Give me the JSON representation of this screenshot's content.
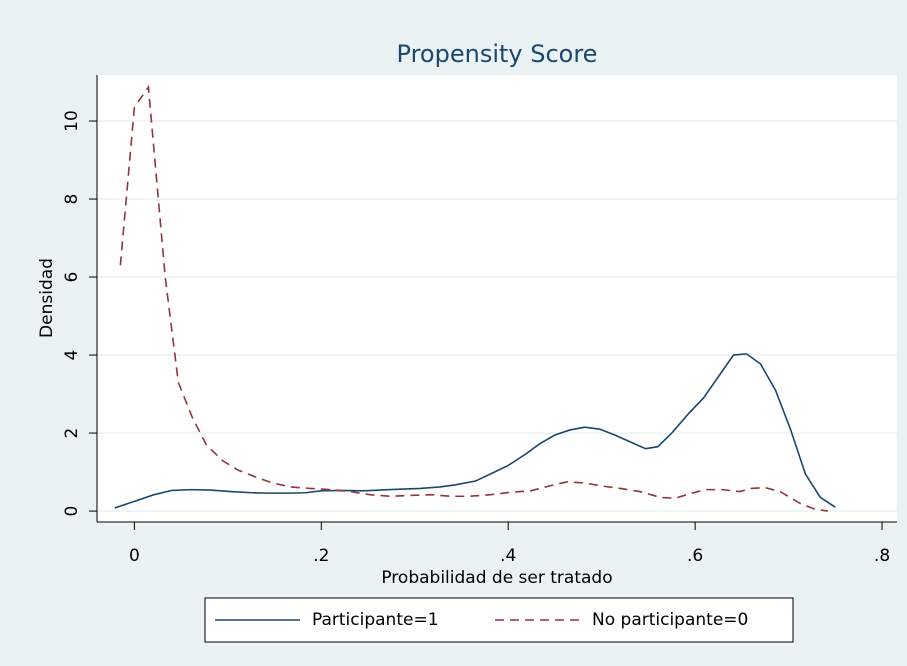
{
  "chart_data": {
    "type": "line",
    "title": "Propensity Score",
    "x_label": "Probabilidad de ser tratado",
    "y_label": "Densidad",
    "xlim": [
      -0.04,
      0.816
    ],
    "ylim": [
      -0.28,
      11.18
    ],
    "xticks": [
      0,
      {
        "value": 0.2,
        "label": ".2"
      },
      {
        "value": 0.4,
        "label": ".4"
      },
      {
        "value": 0.6,
        "label": ".6"
      },
      {
        "value": 0.8,
        "label": ".8"
      }
    ],
    "yticks": [
      0,
      2,
      4,
      6,
      8,
      10
    ],
    "grid": true,
    "legend": "bottom",
    "series": [
      {
        "name": "Participante=1",
        "color": "#1a476f",
        "dash": "solid",
        "x": [
          -0.021,
          0,
          0.021,
          0.04,
          0.061,
          0.081,
          0.103,
          0.126,
          0.142,
          0.167,
          0.183,
          0.2,
          0.22,
          0.246,
          0.263,
          0.284,
          0.306,
          0.327,
          0.343,
          0.365,
          0.381,
          0.4,
          0.418,
          0.434,
          0.45,
          0.466,
          0.482,
          0.498,
          0.514,
          0.53,
          0.547,
          0.56,
          0.575,
          0.593,
          0.609,
          0.625,
          0.641,
          0.655,
          0.67,
          0.686,
          0.702,
          0.718,
          0.734,
          0.75
        ],
        "values": [
          0.08,
          0.25,
          0.42,
          0.53,
          0.55,
          0.54,
          0.5,
          0.47,
          0.46,
          0.46,
          0.47,
          0.52,
          0.53,
          0.52,
          0.54,
          0.56,
          0.58,
          0.62,
          0.67,
          0.77,
          0.95,
          1.17,
          1.45,
          1.73,
          1.95,
          2.08,
          2.15,
          2.1,
          1.95,
          1.78,
          1.6,
          1.65,
          2.0,
          2.5,
          2.9,
          3.45,
          4.0,
          4.03,
          3.77,
          3.1,
          2.1,
          0.95,
          0.35,
          0.1
        ]
      },
      {
        "name": "No participante=0",
        "color": "#90353b",
        "dash": "dashed",
        "x": [
          -0.015,
          0,
          0.015,
          0.033,
          0.047,
          0.062,
          0.077,
          0.094,
          0.111,
          0.129,
          0.148,
          0.167,
          0.188,
          0.21,
          0.231,
          0.252,
          0.274,
          0.295,
          0.317,
          0.338,
          0.359,
          0.381,
          0.402,
          0.424,
          0.445,
          0.463,
          0.482,
          0.498,
          0.52,
          0.541,
          0.563,
          0.579,
          0.595,
          0.611,
          0.629,
          0.648,
          0.659,
          0.675,
          0.691,
          0.712,
          0.728,
          0.742
        ],
        "values": [
          6.3,
          10.35,
          10.87,
          6.0,
          3.3,
          2.4,
          1.7,
          1.3,
          1.05,
          0.88,
          0.72,
          0.62,
          0.58,
          0.55,
          0.5,
          0.42,
          0.38,
          0.4,
          0.42,
          0.38,
          0.38,
          0.42,
          0.48,
          0.52,
          0.65,
          0.75,
          0.72,
          0.65,
          0.58,
          0.5,
          0.35,
          0.33,
          0.45,
          0.55,
          0.55,
          0.5,
          0.58,
          0.6,
          0.5,
          0.2,
          0.05,
          0.0
        ]
      }
    ]
  }
}
